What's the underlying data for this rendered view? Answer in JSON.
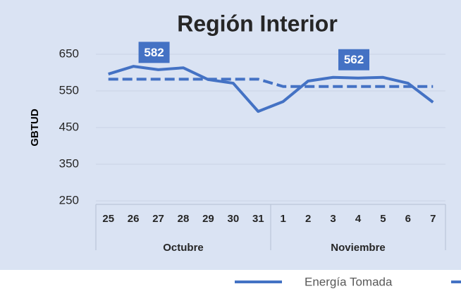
{
  "chart_data": {
    "type": "line",
    "title": "Región Interior",
    "ylabel": "GBTUD",
    "categories": [
      "25",
      "26",
      "27",
      "28",
      "29",
      "30",
      "31",
      "1",
      "2",
      "3",
      "4",
      "5",
      "6",
      "7"
    ],
    "groups": [
      {
        "label": "Octubre",
        "count": 7
      },
      {
        "label": "Noviembre",
        "count": 7
      }
    ],
    "series": [
      {
        "name": "Energía Tomada",
        "color": "#4472c4",
        "dash": false,
        "values": [
          596,
          617,
          608,
          613,
          581,
          571,
          494,
          521,
          577,
          587,
          585,
          587,
          571,
          519
        ]
      },
      {
        "color": "#4472c4",
        "dash": true,
        "values": [
          582,
          582,
          582,
          582,
          582,
          582,
          582,
          562,
          562,
          562,
          562,
          562,
          562,
          562
        ],
        "value_labels": [
          null,
          null,
          "582",
          null,
          null,
          null,
          null,
          null,
          null,
          null,
          "562",
          null,
          null,
          null
        ]
      }
    ],
    "ylim": [
      250,
      650
    ],
    "yticks": [
      250,
      350,
      450,
      550,
      650
    ],
    "grid": true
  }
}
